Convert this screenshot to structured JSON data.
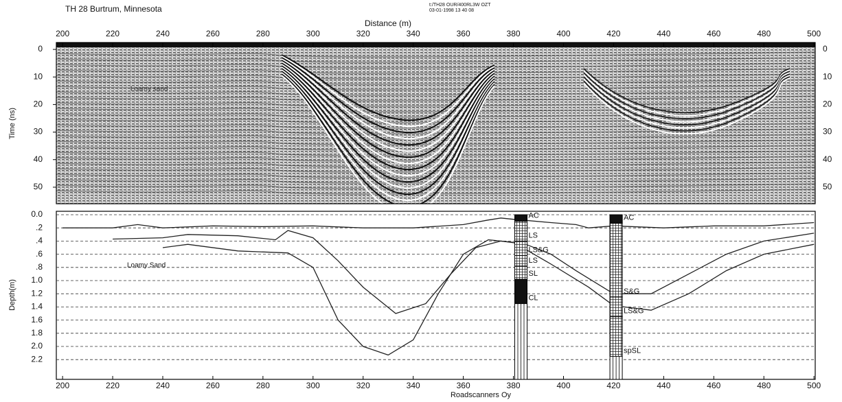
{
  "chart_data": [
    {
      "type": "radargram",
      "title": "TH 28 Burtrum, Minnesota",
      "header_lines": [
        "t:/TH28 OUR/400RL3W OZT",
        "03-01-1998 13 40 08"
      ],
      "xlabel": "Distance (m)",
      "ylabel": "Time (ns)",
      "annotation": "Loamy sand",
      "xlim": [
        197.5,
        500.5
      ],
      "xticks": [
        200,
        220,
        240,
        260,
        280,
        300,
        320,
        340,
        360,
        380,
        400,
        420,
        440,
        460,
        480,
        500
      ],
      "ylim": [
        -2.5,
        56
      ],
      "yticks": [
        0,
        10,
        20,
        30,
        40,
        50
      ],
      "y_inverted": true
    },
    {
      "type": "line",
      "ylabel": "Depth(m)",
      "credit": "Roadscanners Oy",
      "annotation": "Loamy Sand",
      "xlim": [
        197.5,
        500.5
      ],
      "xticks": [
        200,
        220,
        240,
        260,
        280,
        300,
        320,
        340,
        360,
        380,
        400,
        420,
        440,
        460,
        480,
        500
      ],
      "ylim": [
        0,
        2.5
      ],
      "y_inverted": true,
      "grid": "dashed",
      "yticks": [
        {
          "value": 0,
          "label": "0.0"
        },
        {
          "value": 0.2,
          "label": ".2"
        },
        {
          "value": 0.4,
          "label": ".4"
        },
        {
          "value": 0.6,
          "label": ".6"
        },
        {
          "value": 0.8,
          "label": ".8"
        },
        {
          "value": 1,
          "label": "1.0"
        },
        1.2,
        1.4,
        1.6,
        1.8,
        {
          "value": 2,
          "label": "2.0"
        },
        2.2
      ],
      "series": [
        {
          "color": "#222222",
          "x": [
            200,
            220,
            230,
            240,
            260,
            280,
            300,
            320,
            340,
            360,
            370,
            375,
            380,
            395,
            405,
            410,
            420,
            440,
            460,
            480,
            500
          ],
          "values": [
            0.2,
            0.2,
            0.15,
            0.2,
            0.17,
            0.18,
            0.17,
            0.2,
            0.2,
            0.15,
            0.08,
            0.05,
            0.07,
            0.12,
            0.15,
            0.2,
            0.17,
            0.2,
            0.17,
            0.17,
            0.12
          ]
        },
        {
          "color": "#222222",
          "x": [
            220,
            240,
            250,
            270,
            285,
            290,
            300,
            310,
            320,
            333,
            345,
            355,
            365,
            375,
            385,
            395,
            405,
            420,
            435,
            450,
            465,
            480,
            500
          ],
          "values": [
            0.37,
            0.35,
            0.3,
            0.32,
            0.38,
            0.24,
            0.35,
            0.7,
            1.1,
            1.5,
            1.35,
            0.9,
            0.5,
            0.4,
            0.45,
            0.6,
            0.85,
            1.2,
            1.2,
            0.9,
            0.6,
            0.4,
            0.28
          ]
        },
        {
          "color": "#222222",
          "x": [
            240,
            250,
            270,
            290,
            300,
            310,
            320,
            330,
            340,
            350,
            360,
            370,
            380,
            395,
            410,
            420,
            435,
            450,
            465,
            480,
            500
          ],
          "values": [
            0.5,
            0.45,
            0.55,
            0.58,
            0.8,
            1.6,
            2.0,
            2.13,
            1.9,
            1.2,
            0.6,
            0.38,
            0.42,
            0.75,
            1.1,
            1.38,
            1.45,
            1.2,
            0.85,
            0.6,
            0.45
          ]
        }
      ],
      "boreholes": [
        {
          "x": 383,
          "layers": [
            {
              "label": "AC",
              "bottom": 0.1,
              "fill": "solid"
            },
            {
              "label": "LS",
              "bottom": 0.4,
              "fill": "grid"
            },
            {
              "label": "LS&G",
              "bottom": 0.62,
              "fill": "grid"
            },
            {
              "label": "LS",
              "bottom": 0.78,
              "fill": "grid"
            },
            {
              "label": "SL",
              "bottom": 0.98,
              "fill": "grid"
            },
            {
              "label": "CL",
              "bottom": 1.35,
              "fill": "solid"
            }
          ]
        },
        {
          "x": 421,
          "layers": [
            {
              "label": "AC",
              "bottom": 0.13,
              "fill": "solid"
            },
            {
              "label": "S&G",
              "bottom": 1.25,
              "fill": "grid"
            },
            {
              "label": "LS&G",
              "bottom": 1.55,
              "fill": "grid"
            },
            {
              "label": "spSL",
              "bottom": 2.15,
              "fill": "grid"
            }
          ]
        }
      ]
    }
  ]
}
